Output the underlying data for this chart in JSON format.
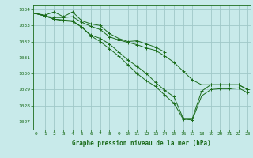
{
  "background_color": "#c8eaea",
  "grid_color": "#a0c8c8",
  "line_color": "#1a6b1a",
  "xlabel": "Graphe pression niveau de la mer (hPa)",
  "ylim": [
    1026.5,
    1034.3
  ],
  "xlim": [
    -0.3,
    23.3
  ],
  "yticks": [
    1027,
    1028,
    1029,
    1030,
    1031,
    1032,
    1033,
    1034
  ],
  "xticks": [
    0,
    1,
    2,
    3,
    4,
    5,
    6,
    7,
    8,
    9,
    10,
    11,
    12,
    13,
    14,
    15,
    16,
    17,
    18,
    19,
    20,
    21,
    22,
    23
  ],
  "series": [
    [
      1033.75,
      1033.65,
      1033.85,
      1033.55,
      1033.85,
      1033.3,
      1033.1,
      1033.0,
      1032.5,
      1032.2,
      1032.0,
      1032.05,
      1031.85,
      1031.65,
      1031.35,
      null,
      null,
      null,
      null,
      null,
      null,
      null,
      null,
      null
    ],
    [
      1033.75,
      1033.6,
      1033.5,
      1033.5,
      1033.55,
      1033.2,
      1032.95,
      1032.75,
      1032.3,
      1032.1,
      1031.95,
      1031.8,
      1031.6,
      1031.45,
      1031.1,
      1030.7,
      1030.15,
      1029.6,
      1029.3,
      1029.3,
      1029.3,
      1029.3,
      1029.3,
      1029.0
    ],
    [
      1033.75,
      1033.6,
      1033.4,
      1033.35,
      1033.3,
      1032.9,
      1032.4,
      1032.2,
      1031.85,
      1031.35,
      1030.85,
      1030.45,
      1030.0,
      1029.45,
      1028.95,
      1028.55,
      1027.2,
      1027.2,
      1028.9,
      1029.3,
      1029.3,
      1029.3,
      1029.3,
      1029.0
    ],
    [
      1033.75,
      1033.6,
      1033.4,
      1033.3,
      1033.25,
      1032.9,
      1032.35,
      1032.0,
      1031.55,
      1031.1,
      1030.55,
      1030.0,
      1029.55,
      1029.2,
      1028.65,
      1028.15,
      1027.15,
      1027.1,
      1028.6,
      1029.0,
      1029.05,
      1029.05,
      1029.1,
      1028.8
    ]
  ]
}
